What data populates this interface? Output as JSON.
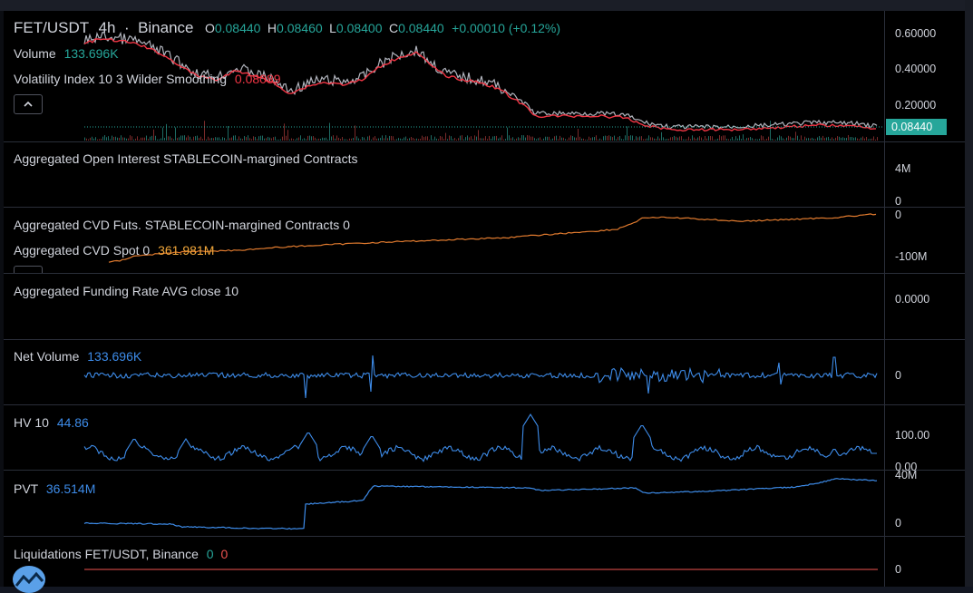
{
  "symbol": {
    "pair": "FET/USDT",
    "interval": "4h",
    "exchange": "Binance",
    "separator": "·"
  },
  "ohlc": {
    "o_label": "O",
    "o": "0.08440",
    "h_label": "H",
    "h": "0.08460",
    "l_label": "L",
    "l": "0.08400",
    "c_label": "C",
    "c": "0.08440",
    "change": "+0.00010 (+0.12%)"
  },
  "legend": {
    "volume_label": "Volume",
    "volume_value": "133.696K",
    "volatility_label": "Volatility Index 10 3 Wilder Smoothing",
    "volatility_value": "0.08089",
    "collapse_icon": "chevron-up-icon"
  },
  "price_axis": {
    "ticks": [
      "0.60000",
      "0.40000",
      "0.20000"
    ],
    "last_price": "0.08440"
  },
  "panes": {
    "open_interest": {
      "label": "Aggregated Open Interest STABLECOIN-margined Contracts",
      "ticks": [
        "4M",
        "0"
      ]
    },
    "cvd": {
      "label": "Aggregated CVD Futs. STABLECOIN-margined Contracts 0",
      "spot_label": "Aggregated CVD Spot 0",
      "spot_value": "361.981M",
      "ticks": [
        "0",
        "-100M"
      ]
    },
    "funding": {
      "label": "Aggregated Funding Rate AVG close 10",
      "ticks": [
        "0.0000"
      ]
    },
    "net_volume": {
      "label": "Net Volume",
      "value": "133.696K",
      "ticks": [
        "0"
      ]
    },
    "hv": {
      "label": "HV 10",
      "value": "44.86",
      "ticks": [
        "100.00",
        "0.00"
      ]
    },
    "pvt": {
      "label": "PVT",
      "value": "36.514M",
      "ticks": [
        "40M",
        "0"
      ]
    },
    "liquidations": {
      "label": "Liquidations FET/USDT, Binance",
      "long_value": "0",
      "short_value": "0",
      "ticks": [
        "0"
      ]
    }
  },
  "colors": {
    "up": "#26a69a",
    "down": "#ef5350",
    "text": "#d1d4dc",
    "blue": "#2962ff",
    "line_blue": "#3d8be8",
    "cvd_orange": "#e07a2e",
    "volatility": "#f23645",
    "candles": "#b2b5be"
  },
  "logo_icon": "tradingview-icon"
}
